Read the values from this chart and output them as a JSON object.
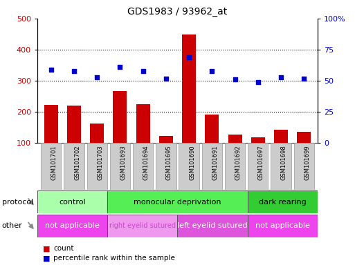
{
  "title": "GDS1983 / 93962_at",
  "samples": [
    "GSM101701",
    "GSM101702",
    "GSM101703",
    "GSM101693",
    "GSM101694",
    "GSM101695",
    "GSM101690",
    "GSM101691",
    "GSM101692",
    "GSM101697",
    "GSM101698",
    "GSM101699"
  ],
  "counts": [
    222,
    220,
    162,
    268,
    225,
    122,
    448,
    192,
    128,
    118,
    142,
    137
  ],
  "percentiles": [
    59,
    58,
    53,
    61,
    58,
    52,
    69,
    58,
    51,
    49,
    53,
    52
  ],
  "ylim_left": [
    100,
    500
  ],
  "ylim_right": [
    0,
    100
  ],
  "left_ticks": [
    100,
    200,
    300,
    400,
    500
  ],
  "right_ticks": [
    0,
    25,
    50,
    75,
    100
  ],
  "right_tick_labels": [
    "0",
    "25",
    "50",
    "75",
    "100%"
  ],
  "bar_color": "#cc0000",
  "dot_color": "#0000cc",
  "protocol_groups": [
    {
      "label": "control",
      "start": 0,
      "end": 3,
      "color": "#aaffaa"
    },
    {
      "label": "monocular deprivation",
      "start": 3,
      "end": 9,
      "color": "#55ee55"
    },
    {
      "label": "dark rearing",
      "start": 9,
      "end": 12,
      "color": "#33cc33"
    }
  ],
  "other_groups": [
    {
      "label": "not applicable",
      "start": 0,
      "end": 3,
      "color": "#ee44ee",
      "fontsize": 8,
      "text_color": "white"
    },
    {
      "label": "right eyelid sutured",
      "start": 3,
      "end": 6,
      "color": "#ee99ee",
      "fontsize": 7,
      "text_color": "#cc44cc"
    },
    {
      "label": "left eyelid sutured",
      "start": 6,
      "end": 9,
      "color": "#dd55dd",
      "fontsize": 8,
      "text_color": "white"
    },
    {
      "label": "not applicable",
      "start": 9,
      "end": 12,
      "color": "#ee44ee",
      "fontsize": 8,
      "text_color": "white"
    }
  ],
  "protocol_label": "protocol",
  "other_label": "other",
  "legend_count_label": "count",
  "legend_pct_label": "percentile rank within the sample",
  "left_tick_color": "#cc0000",
  "right_tick_color": "#0000cc",
  "tick_area_color": "#cccccc",
  "tick_area_border": "#999999"
}
